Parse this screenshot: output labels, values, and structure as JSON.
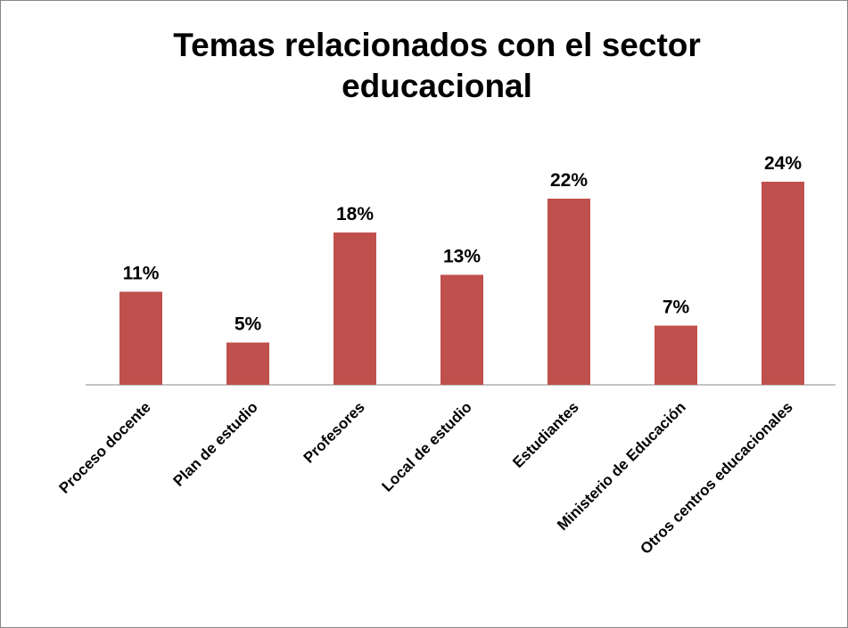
{
  "chart_data": {
    "type": "bar",
    "title": "Temas relacionados con el sector educacional",
    "categories": [
      "Proceso docente",
      "Plan de estudio",
      "Profesores",
      "Local de estudio",
      "Estudiantes",
      "Ministerio de Educación",
      "Otros centros educacionales"
    ],
    "values": [
      11,
      5,
      18,
      13,
      22,
      7,
      24
    ],
    "value_labels": [
      "11%",
      "5%",
      "18%",
      "13%",
      "22%",
      "7%",
      "24%"
    ],
    "color": "#c0504d"
  }
}
